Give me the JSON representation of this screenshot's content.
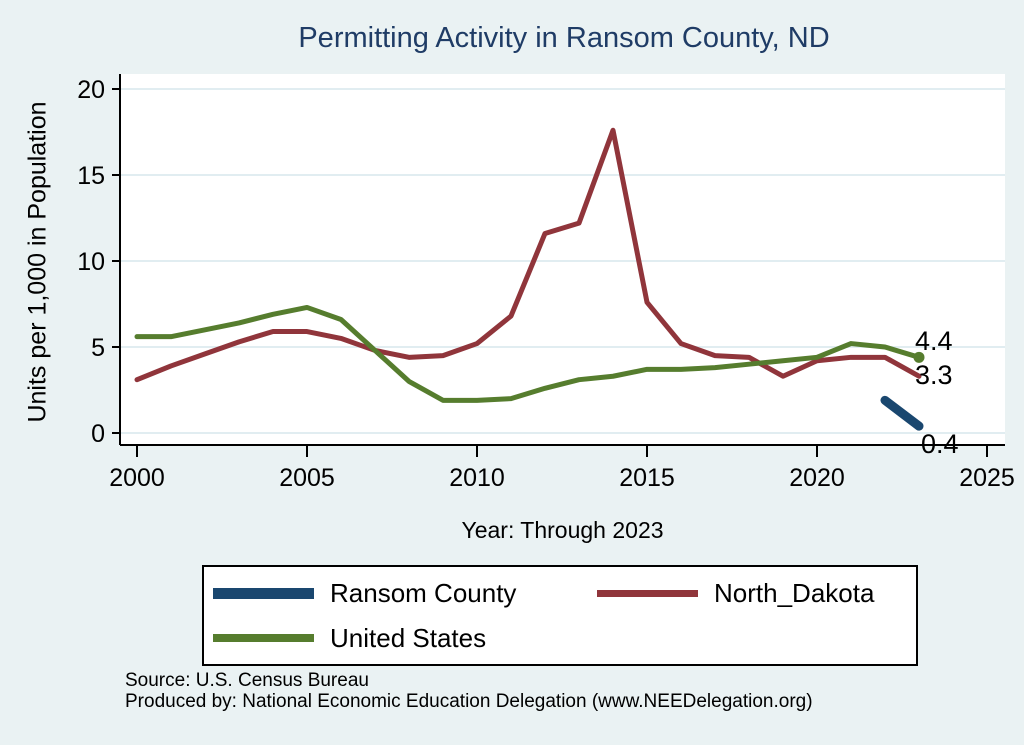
{
  "chart_data": {
    "type": "line",
    "title": "Permitting Activity in Ransom County, ND",
    "xlabel": "Year: Through 2023",
    "ylabel": "Units per 1,000 in Population",
    "x_range": [
      2000,
      2025
    ],
    "y_range": [
      0,
      20
    ],
    "x_ticks": [
      2000,
      2005,
      2010,
      2015,
      2020,
      2025
    ],
    "y_ticks": [
      0,
      5,
      10,
      15,
      20
    ],
    "grid": "horizontal",
    "legend_position": "bottom",
    "series": [
      {
        "name": "Ransom County",
        "color": "#1a476f",
        "line_width": 9,
        "x": [
          2022,
          2023
        ],
        "values": [
          1.9,
          0.4
        ],
        "end_label": "0.4",
        "end_marker": false
      },
      {
        "name": "North_Dakota",
        "color": "#90353b",
        "line_width": 5,
        "x": [
          2000,
          2001,
          2002,
          2003,
          2004,
          2005,
          2006,
          2007,
          2008,
          2009,
          2010,
          2011,
          2012,
          2013,
          2014,
          2015,
          2016,
          2017,
          2018,
          2019,
          2020,
          2021,
          2022,
          2023
        ],
        "values": [
          3.1,
          3.9,
          4.6,
          5.3,
          5.9,
          5.9,
          5.5,
          4.8,
          4.4,
          4.5,
          5.2,
          6.8,
          11.6,
          12.2,
          17.6,
          7.6,
          5.2,
          4.5,
          4.4,
          3.3,
          4.2,
          4.4,
          4.4,
          3.3
        ],
        "end_label": "3.3",
        "end_marker": false
      },
      {
        "name": "United States",
        "color": "#567d2e",
        "line_width": 5,
        "x": [
          2000,
          2001,
          2002,
          2003,
          2004,
          2005,
          2006,
          2007,
          2008,
          2009,
          2010,
          2011,
          2012,
          2013,
          2014,
          2015,
          2016,
          2017,
          2018,
          2019,
          2020,
          2021,
          2022,
          2023
        ],
        "values": [
          5.6,
          5.6,
          6.0,
          6.4,
          6.9,
          7.3,
          6.6,
          4.8,
          3.0,
          1.9,
          1.9,
          2.0,
          2.6,
          3.1,
          3.3,
          3.7,
          3.7,
          3.8,
          4.0,
          4.2,
          4.4,
          5.2,
          5.0,
          4.4
        ],
        "end_label": "4.4",
        "end_marker": true
      }
    ],
    "plot_colors": {
      "page_background": "#eaf2f3",
      "plot_background": "#ffffff",
      "gridline": "#e1edf1",
      "axis": "#000000",
      "title": "#1f3c66"
    }
  },
  "source_line1": "Source: U.S. Census Bureau",
  "source_line2": "Produced by: National Economic Education Delegation (www.NEEDelegation.org)"
}
